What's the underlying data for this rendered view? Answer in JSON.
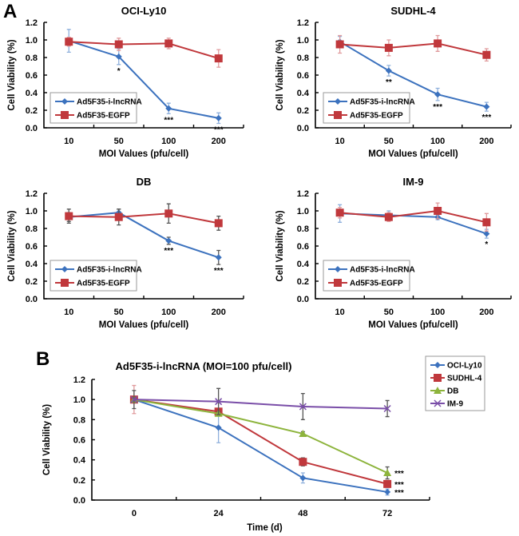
{
  "panels": {
    "A_label": "A",
    "B_label": "B"
  },
  "colors": {
    "blue": "#3c72be",
    "red": "#c0383c",
    "green": "#8db43c",
    "purple": "#7a4ea8",
    "err_blue": "#8fb0dc",
    "err_red": "#e09a9c",
    "err_dark": "#555555"
  },
  "chart_data": [
    {
      "id": "ocily10",
      "type": "line",
      "title": "OCI-Ly10",
      "xlabel": "MOI Values (pfu/cell)",
      "ylabel": "Cell Viability (%)",
      "categories": [
        "10",
        "50",
        "100",
        "200"
      ],
      "ylim": [
        0,
        1.2
      ],
      "yticks": [
        "0.0",
        "0.2",
        "0.4",
        "0.6",
        "0.8",
        "1.0",
        "1.2"
      ],
      "legend": "bottom-left",
      "error_style": "light",
      "series": [
        {
          "name": "Ad5F35-i-lncRNA",
          "color": "blue",
          "marker": "diamond",
          "values": [
            0.99,
            0.81,
            0.22,
            0.11
          ],
          "errors": [
            0.13,
            0.09,
            0.06,
            0.06
          ],
          "sig": [
            "",
            "*",
            "***",
            "***"
          ]
        },
        {
          "name": "Ad5F35-EGFP",
          "color": "red",
          "marker": "square",
          "values": [
            0.98,
            0.95,
            0.96,
            0.79
          ],
          "errors": [
            0.05,
            0.07,
            0.06,
            0.1
          ],
          "sig": [
            "",
            "",
            "",
            ""
          ]
        }
      ]
    },
    {
      "id": "sudhl4",
      "type": "line",
      "title": "SUDHL-4",
      "xlabel": "MOI Values (pfu/cell)",
      "ylabel": "Cell Viability (%)",
      "categories": [
        "10",
        "50",
        "100",
        "200"
      ],
      "ylim": [
        0,
        1.2
      ],
      "yticks": [
        "0.0",
        "0.2",
        "0.4",
        "0.6",
        "0.8",
        "1.0",
        "1.2"
      ],
      "legend": "bottom-left",
      "error_style": "light",
      "series": [
        {
          "name": "Ad5F35-i-lncRNA",
          "color": "blue",
          "marker": "diamond",
          "values": [
            0.98,
            0.65,
            0.38,
            0.24
          ],
          "errors": [
            0.06,
            0.06,
            0.07,
            0.05
          ],
          "sig": [
            "",
            "**",
            "***",
            "***"
          ]
        },
        {
          "name": "Ad5F35-EGFP",
          "color": "red",
          "marker": "square",
          "values": [
            0.95,
            0.91,
            0.96,
            0.83
          ],
          "errors": [
            0.1,
            0.09,
            0.09,
            0.07
          ],
          "sig": [
            "",
            "",
            "",
            ""
          ]
        }
      ]
    },
    {
      "id": "db",
      "type": "line",
      "title": "DB",
      "xlabel": "MOI Values (pfu/cell)",
      "ylabel": "Cell Viability (%)",
      "categories": [
        "10",
        "50",
        "100",
        "200"
      ],
      "ylim": [
        0,
        1.2
      ],
      "yticks": [
        "0.0",
        "0.2",
        "0.4",
        "0.6",
        "0.8",
        "1.0",
        "1.2"
      ],
      "legend": "bottom-left",
      "error_style": "dark",
      "series": [
        {
          "name": "Ad5F35-i-lncRNA",
          "color": "blue",
          "marker": "diamond",
          "values": [
            0.93,
            0.98,
            0.66,
            0.47
          ],
          "errors": [
            0.05,
            0.04,
            0.04,
            0.08
          ],
          "sig": [
            "",
            "",
            "***",
            "***"
          ]
        },
        {
          "name": "Ad5F35-EGFP",
          "color": "red",
          "marker": "square",
          "values": [
            0.94,
            0.93,
            0.97,
            0.86
          ],
          "errors": [
            0.08,
            0.09,
            0.11,
            0.08
          ],
          "sig": [
            "",
            "",
            "",
            ""
          ]
        }
      ]
    },
    {
      "id": "im9",
      "type": "line",
      "title": "IM-9",
      "xlabel": "MOI Values (pfu/cell)",
      "ylabel": "Cell Viability (%)",
      "categories": [
        "10",
        "50",
        "100",
        "200"
      ],
      "ylim": [
        0,
        1.2
      ],
      "yticks": [
        "0.0",
        "0.2",
        "0.4",
        "0.6",
        "0.8",
        "1.0",
        "1.2"
      ],
      "legend": "bottom-left",
      "error_style": "light",
      "series": [
        {
          "name": "Ad5F35-i-lncRNA",
          "color": "blue",
          "marker": "diamond",
          "values": [
            0.97,
            0.95,
            0.93,
            0.74
          ],
          "errors": [
            0.1,
            0.05,
            0.03,
            0.05
          ],
          "sig": [
            "",
            "",
            "",
            "*"
          ]
        },
        {
          "name": "Ad5F35-EGFP",
          "color": "red",
          "marker": "square",
          "values": [
            0.98,
            0.93,
            1.0,
            0.87
          ],
          "errors": [
            0.06,
            0.05,
            0.09,
            0.1
          ],
          "sig": [
            "",
            "",
            "",
            ""
          ]
        }
      ]
    },
    {
      "id": "timecourse",
      "type": "line",
      "title": "Ad5F35-i-lncRNA (MOI=100 pfu/cell)",
      "xlabel": "Time (d)",
      "ylabel": "Cell Viability (%)",
      "categories": [
        "0",
        "24",
        "48",
        "72"
      ],
      "ylim": [
        0,
        1.2
      ],
      "yticks": [
        "0.0",
        "0.2",
        "0.4",
        "0.6",
        "0.8",
        "1.0",
        "1.2"
      ],
      "legend": "top-right",
      "error_style": "mixed",
      "series": [
        {
          "name": "OCI-Ly10",
          "color": "blue",
          "marker": "diamond",
          "values": [
            1.0,
            0.72,
            0.22,
            0.08
          ],
          "errors": [
            0.02,
            0.15,
            0.05,
            0.03
          ],
          "sig": [
            "",
            "",
            "",
            "***"
          ]
        },
        {
          "name": "SUDHL-4",
          "color": "red",
          "marker": "square",
          "values": [
            1.0,
            0.88,
            0.38,
            0.16
          ],
          "errors": [
            0.14,
            0.02,
            0.04,
            0.02
          ],
          "sig": [
            "",
            "",
            "",
            "***"
          ]
        },
        {
          "name": "DB",
          "color": "green",
          "marker": "triangle",
          "values": [
            1.0,
            0.86,
            0.66,
            0.27
          ],
          "errors": [
            0.02,
            0.02,
            0.02,
            0.06
          ],
          "sig": [
            "",
            "",
            "",
            "***"
          ]
        },
        {
          "name": "IM-9",
          "color": "purple",
          "marker": "x",
          "values": [
            1.0,
            0.98,
            0.93,
            0.91
          ],
          "errors": [
            0.09,
            0.13,
            0.13,
            0.08
          ],
          "sig": [
            "",
            "",
            "",
            ""
          ]
        }
      ]
    }
  ]
}
